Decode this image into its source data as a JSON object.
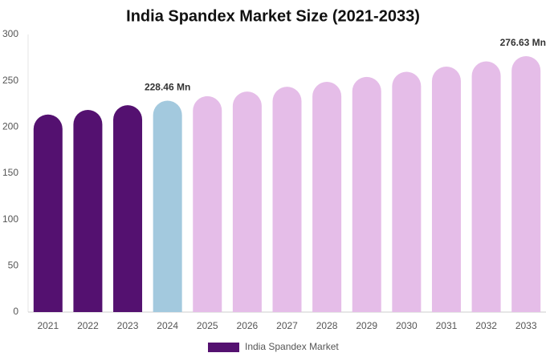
{
  "chart_data": {
    "type": "bar",
    "title": "India Spandex Market Size (2021-2033)",
    "categories": [
      "2021",
      "2022",
      "2023",
      "2024",
      "2025",
      "2026",
      "2027",
      "2028",
      "2029",
      "2030",
      "2031",
      "2032",
      "2033"
    ],
    "series": [
      {
        "name": "India Spandex Market",
        "color": "#541170",
        "values": [
          213.5,
          218.5,
          223.6,
          228.46,
          233.3,
          238.3,
          243.5,
          248.8,
          254.2,
          259.7,
          265.3,
          270.9,
          276.63
        ],
        "value_labels": [
          null,
          null,
          null,
          "228.46 Mn",
          null,
          null,
          null,
          null,
          null,
          null,
          null,
          null,
          "276.63 Mn"
        ],
        "bar_colors": [
          "#541170",
          "#541170",
          "#541170",
          "#a3c9de",
          "#e5bde8",
          "#e5bde8",
          "#e5bde8",
          "#e5bde8",
          "#e5bde8",
          "#e5bde8",
          "#e5bde8",
          "#e5bde8",
          "#e5bde8"
        ]
      }
    ],
    "ylim": [
      0,
      300
    ],
    "yticks": [
      0,
      50,
      100,
      150,
      200,
      250,
      300
    ],
    "grid": false,
    "legend": "bottom"
  }
}
